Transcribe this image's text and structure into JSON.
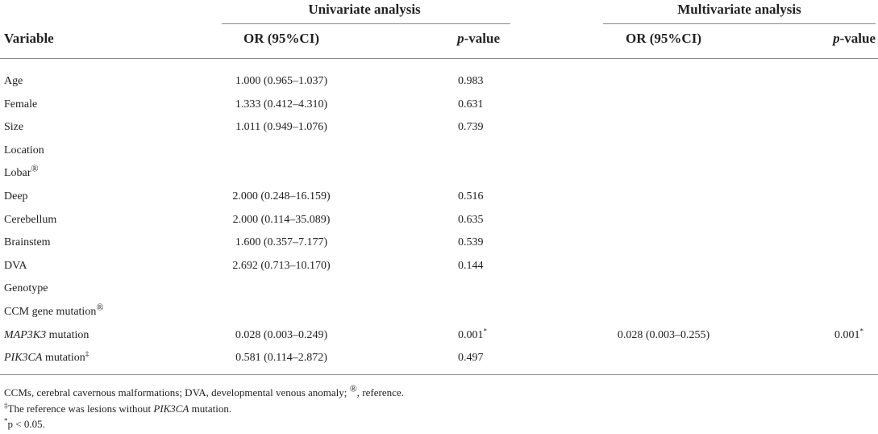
{
  "header": {
    "univariate": "Univariate analysis",
    "multivariate": "Multivariate analysis",
    "variable": "Variable",
    "or_ci": "OR (95%CI)",
    "p_italic": "p",
    "p_suffix": "-value"
  },
  "rows": [
    {
      "variable": "Age",
      "uni_or": "1.000 (0.965–1.037)",
      "uni_p": "0.983"
    },
    {
      "variable": "Female",
      "uni_or": "1.333 (0.412–4.310)",
      "uni_p": "0.631"
    },
    {
      "variable": "Size",
      "uni_or": "1.011 (0.949–1.076)",
      "uni_p": "0.739"
    },
    {
      "variable": "Location"
    },
    {
      "variable": "Lobar",
      "mark": "®"
    },
    {
      "variable": "Deep",
      "uni_or": "2.000 (0.248–16.159)",
      "uni_p": "0.516"
    },
    {
      "variable": "Cerebellum",
      "uni_or": "2.000 (0.114–35.089)",
      "uni_p": "0.635"
    },
    {
      "variable": "Brainstem",
      "uni_or": "1.600 (0.357–7.177)",
      "uni_p": "0.539"
    },
    {
      "variable": "DVA",
      "uni_or": "2.692 (0.713–10.170)",
      "uni_p": "0.144"
    },
    {
      "variable": "Genotype"
    },
    {
      "variable": "CCM gene mutation",
      "mark": "®"
    },
    {
      "variable_italic": "MAP3K3",
      "variable_rest": " mutation",
      "uni_or": "0.028 (0.003–0.249)",
      "uni_p": "0.001",
      "uni_p_mark": "*",
      "multi_or": "0.028 (0.003–0.255)",
      "multi_p": "0.001",
      "multi_p_mark": "*"
    },
    {
      "variable_italic": "PIK3CA",
      "variable_rest": " mutation",
      "mark": "‡",
      "uni_or": "0.581 (0.114–2.872)",
      "uni_p": "0.497"
    }
  ],
  "footnotes": {
    "line1_a": "CCMs, cerebral cavernous malformations; DVA, developmental venous anomaly; ",
    "line1_mark": "®",
    "line1_b": ", reference.",
    "line2_mark": "‡",
    "line2_a": "The reference was lesions without ",
    "line2_italic": "PIK3CA",
    "line2_b": " mutation.",
    "line3_mark": "*",
    "line3_text": "p < 0.05."
  }
}
